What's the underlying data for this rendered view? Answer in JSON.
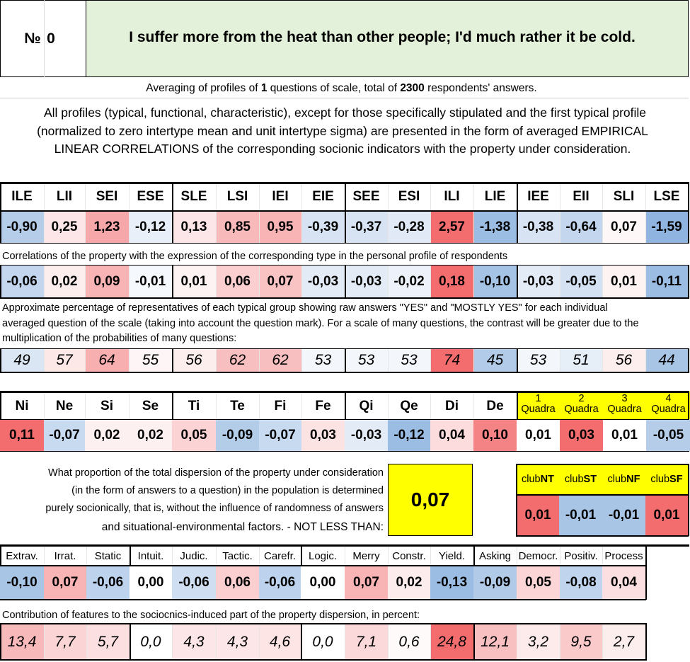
{
  "header": {
    "number_label": "№",
    "number_value": "0",
    "question": "I suffer more from the heat than other people; I'd much rather it be cold."
  },
  "averaging": {
    "prefix": "Averaging of profiles of ",
    "questions": "1",
    "middle": " questions of scale, total of ",
    "respondents": "2300",
    "suffix": " respondents' answers."
  },
  "intro": {
    "line1": "All profiles (typical, functional, characteristic), except for those specifically stipulated and the first typical profile",
    "line2": "(normalized to zero intertype mean and unit intertype sigma) are presented in the form of averaged EMPIRICAL",
    "line3": "LINEAR CORRELATIONS of the corresponding socionic indicators with the property under consideration."
  },
  "types": {
    "headers": [
      "ILE",
      "LII",
      "SEI",
      "ESE",
      "SLE",
      "LSI",
      "IEI",
      "EIE",
      "SEE",
      "ESI",
      "ILI",
      "LIE",
      "IEE",
      "EII",
      "SLI",
      "LSE"
    ],
    "profile": [
      "-0,90",
      "0,25",
      "1,23",
      "-0,12",
      "0,13",
      "0,85",
      "0,95",
      "-0,39",
      "-0,37",
      "-0,28",
      "2,57",
      "-1,38",
      "-0,38",
      "-0,64",
      "0,07",
      "-1,59"
    ],
    "profile_colors": [
      "#b5cde9",
      "#fde6e7",
      "#f6a7a9",
      "#e8eff9",
      "#fde6e7",
      "#f8b9ba",
      "#f8b3b4",
      "#d7e3f3",
      "#d7e3f3",
      "#e0e9f5",
      "#f36d6f",
      "#9cbde3",
      "#d7e3f3",
      "#c3d6ee",
      "#fef7f7",
      "#8fb4df"
    ],
    "correlations_label": "Correlations of the property with the expression of the corresponding type in the personal profile of respondents",
    "correlations": [
      "-0,06",
      "0,02",
      "0,09",
      "-0,01",
      "0,01",
      "0,06",
      "0,07",
      "-0,03",
      "-0,03",
      "-0,02",
      "0,18",
      "-0,10",
      "-0,03",
      "-0,05",
      "0,01",
      "-0,11"
    ],
    "correlation_colors": [
      "#c3d6ee",
      "#fdeeee",
      "#f8b3b4",
      "#f5f8fc",
      "#fdf3f3",
      "#fbcfd0",
      "#f9c2c3",
      "#e3ebf6",
      "#e3ebf6",
      "#edf2fa",
      "#f36d6f",
      "#a5c3e5",
      "#e3ebf6",
      "#d4e1f2",
      "#fdf3f3",
      "#9cbde3"
    ],
    "percent_label_1": "Approximate percentage of representatives of each typical group showing raw answers \"YES\" and \"MOSTLY YES\" for each individual",
    "percent_label_2": "averaged question of the scale (taking into account the question mark). For a scale of many questions, the contrast will be greater due to the",
    "percent_label_3": "multiplication of the probabilities of many questions:",
    "percents": [
      "49",
      "57",
      "64",
      "55",
      "56",
      "62",
      "62",
      "53",
      "53",
      "53",
      "74",
      "45",
      "53",
      "51",
      "56",
      "44"
    ],
    "percent_colors": [
      "#dbe6f4",
      "#fde8e8",
      "#f7afb0",
      "#fef6f6",
      "#fdeeee",
      "#f8bfc0",
      "#f8bfc0",
      "#f3f7fc",
      "#f3f7fc",
      "#f3f7fc",
      "#f36d6f",
      "#b2cbe8",
      "#f3f7fc",
      "#e6eef8",
      "#fdeeee",
      "#a9c5e6"
    ]
  },
  "functions": {
    "headers": [
      "Ni",
      "Ne",
      "Si",
      "Se",
      "Ti",
      "Te",
      "Fi",
      "Fe",
      "Qi",
      "Qe",
      "Di",
      "De"
    ],
    "values": [
      "0,11",
      "-0,07",
      "0,02",
      "0,02",
      "0,05",
      "-0,09",
      "-0,07",
      "0,03",
      "-0,03",
      "-0,12",
      "0,04",
      "0,10"
    ],
    "colors": [
      "#f36d6f",
      "#c8daf0",
      "#fdf0f0",
      "#fdf0f0",
      "#fbd3d4",
      "#b3cce8",
      "#c8daf0",
      "#fce3e3",
      "#e3ebf6",
      "#9cbde3",
      "#fcdcdc",
      "#f48385"
    ],
    "quadra_num": [
      "1",
      "2",
      "3",
      "4"
    ],
    "quadra_word": "Quadra",
    "quadra_values": [
      "0,01",
      "0,03",
      "0,01",
      "-0,05"
    ],
    "quadra_colors": [
      "#ffffff",
      "#f36d6f",
      "#ffffff",
      "#b5cde9"
    ],
    "quadra_header_color": "#ffff00"
  },
  "dispersion": {
    "line1": "What proportion of the total dispersion of the property under consideration",
    "line2": "(in the form of answers to a question) in the population is determined",
    "line3": "purely socionically, that is, without the influence of randomness of answers",
    "line4": "and situational-environmental factors. - NOT LESS THAN:",
    "value": "0,07",
    "value_color": "#ffff00"
  },
  "clubs": {
    "prefix": "club",
    "names": [
      "NT",
      "ST",
      "NF",
      "SF"
    ],
    "values": [
      "0,01",
      "-0,01",
      "-0,01",
      "0,01"
    ],
    "colors": [
      "#f36d6f",
      "#a9c5e6",
      "#a9c5e6",
      "#f36d6f"
    ],
    "header_color": "#ffff00"
  },
  "traits": {
    "headers": [
      "Extrav.",
      "Irrat.",
      "Static",
      "Intuit.",
      "Judic.",
      "Tactic.",
      "Carefr.",
      "Logic.",
      "Merry",
      "Constr.",
      "Yield.",
      "Asking",
      "Democr.",
      "Positiv.",
      "Process"
    ],
    "values": [
      "-0,10",
      "0,07",
      "-0,06",
      "0,00",
      "-0,06",
      "0,06",
      "-0,06",
      "0,00",
      "0,07",
      "0,02",
      "-0,13",
      "-0,09",
      "0,05",
      "-0,08",
      "0,04"
    ],
    "colors": [
      "#a9c5e6",
      "#f8b3b4",
      "#bdd2ec",
      "#ffffff",
      "#d0def1",
      "#fbcfd0",
      "#bdd2ec",
      "#ffffff",
      "#f8b3b4",
      "#fdecec",
      "#9cbde3",
      "#b0cae8",
      "#fcd6d7",
      "#c0d4ed",
      "#fcdfe0"
    ],
    "contribution_label": "Contribution of features to the sociocnics-induced part of the property dispersion, in percent:",
    "contributions": [
      "13,4",
      "7,7",
      "5,7",
      "0,0",
      "4,3",
      "4,3",
      "4,6",
      "0,0",
      "7,1",
      "0,6",
      "24,8",
      "12,1",
      "3,2",
      "9,5",
      "2,7"
    ],
    "contribution_colors": [
      "#f8b9ba",
      "#fbd5d6",
      "#fcdfe0",
      "#ffffff",
      "#fde6e7",
      "#fde6e7",
      "#fde4e5",
      "#ffffff",
      "#fbd8d9",
      "#fefafa",
      "#f36d6f",
      "#f9c0c1",
      "#fdebeb",
      "#fac9ca",
      "#fdeeee"
    ]
  }
}
